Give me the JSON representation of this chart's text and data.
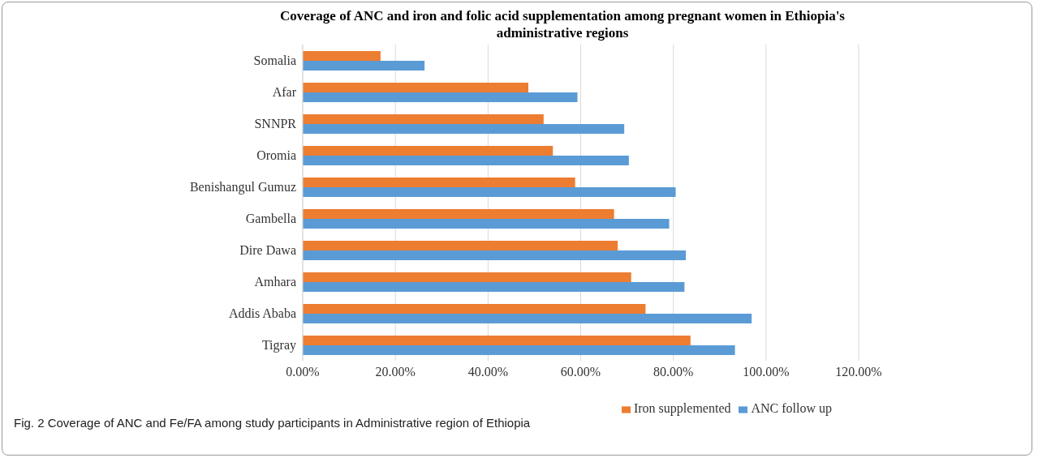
{
  "chart_data": {
    "type": "bar",
    "orientation": "horizontal",
    "title": "Coverage of ANC and iron and folic acid supplementation  among pregnant women in Ethiopia's administrative  regions",
    "categories": [
      "Somalia",
      "Afar",
      "SNNPR",
      "Oromia",
      "Benishangul Gumuz",
      "Gambella",
      "Dire Dawa",
      "Amhara",
      "Addis Ababa",
      "Tigray"
    ],
    "series": [
      {
        "name": "Iron supplemented",
        "color": "#ed7d31",
        "values": [
          16.8,
          48.7,
          52.0,
          54.0,
          58.8,
          67.2,
          68.0,
          70.9,
          74.0,
          83.7
        ]
      },
      {
        "name": "ANC follow up",
        "color": "#5b9bd5",
        "values": [
          26.3,
          59.3,
          69.4,
          70.4,
          80.5,
          79.1,
          82.7,
          82.4,
          96.9,
          93.3
        ]
      }
    ],
    "xlim": [
      0,
      120
    ],
    "xticks": [
      {
        "value": 0,
        "label": "0.00%"
      },
      {
        "value": 20,
        "label": "20.00%"
      },
      {
        "value": 40,
        "label": "40.00%"
      },
      {
        "value": 60,
        "label": "60.00%"
      },
      {
        "value": 80,
        "label": "80.00%"
      },
      {
        "value": 100,
        "label": "100.00%"
      },
      {
        "value": 120,
        "label": "120.00%"
      }
    ],
    "grid": "x",
    "legend": "bottom",
    "annotations": [
      "Fig. 2  Coverage of ANC and Fe/FA among study participants in Administrative region of Ethiopia"
    ]
  }
}
